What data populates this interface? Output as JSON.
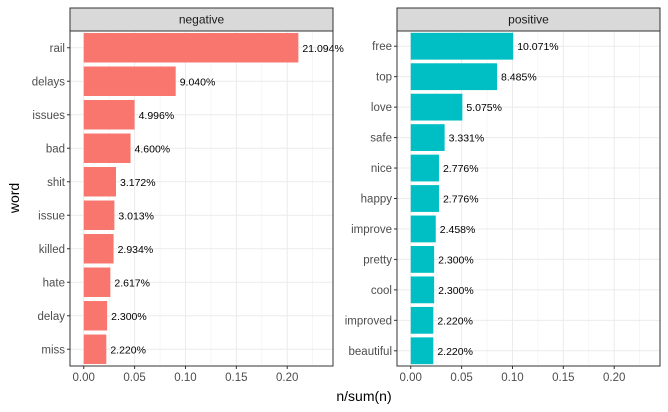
{
  "chart_data": {
    "type": "bar",
    "orientation": "horizontal",
    "xlabel": "n/sum(n)",
    "ylabel": "word",
    "grid": true,
    "legend": "none",
    "facets": [
      {
        "name": "negative",
        "color": "#F8766D",
        "xlim": [
          -0.0135,
          0.245
        ],
        "x_ticks": [
          "0.00",
          "0.05",
          "0.10",
          "0.15",
          "0.20"
        ],
        "categories": [
          "rail",
          "delays",
          "issues",
          "bad",
          "shit",
          "issue",
          "killed",
          "hate",
          "delay",
          "miss"
        ],
        "values": [
          0.21094,
          0.0904,
          0.04996,
          0.046,
          0.03172,
          0.03013,
          0.02934,
          0.02617,
          0.023,
          0.0222
        ],
        "labels": [
          "21.094%",
          "9.040%",
          "4.996%",
          "4.600%",
          "3.172%",
          "3.013%",
          "2.934%",
          "2.617%",
          "2.300%",
          "2.220%"
        ]
      },
      {
        "name": "positive",
        "color": "#00BFC4",
        "xlim": [
          -0.0135,
          0.245
        ],
        "x_ticks": [
          "0.00",
          "0.05",
          "0.10",
          "0.15",
          "0.20"
        ],
        "categories": [
          "free",
          "top",
          "love",
          "safe",
          "nice",
          "happy",
          "improve",
          "pretty",
          "cool",
          "improved",
          "beautiful"
        ],
        "values": [
          0.10071,
          0.08485,
          0.05075,
          0.03331,
          0.02776,
          0.02776,
          0.02458,
          0.023,
          0.023,
          0.0222,
          0.0222
        ],
        "labels": [
          "10.071%",
          "8.485%",
          "5.075%",
          "3.331%",
          "2.776%",
          "2.776%",
          "2.458%",
          "2.300%",
          "2.300%",
          "2.220%",
          "2.220%"
        ]
      }
    ]
  }
}
